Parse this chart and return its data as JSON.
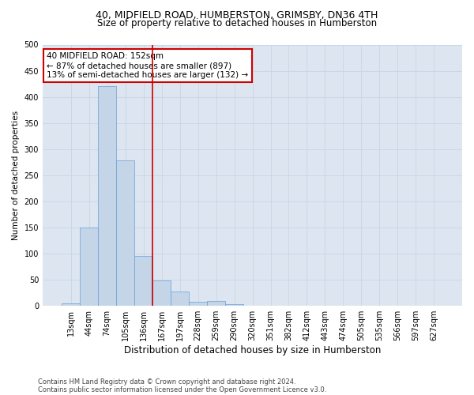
{
  "title_line1": "40, MIDFIELD ROAD, HUMBERSTON, GRIMSBY, DN36 4TH",
  "title_line2": "Size of property relative to detached houses in Humberston",
  "xlabel": "Distribution of detached houses by size in Humberston",
  "ylabel": "Number of detached properties",
  "footnote1": "Contains HM Land Registry data © Crown copyright and database right 2024.",
  "footnote2": "Contains public sector information licensed under the Open Government Licence v3.0.",
  "bar_labels": [
    "13sqm",
    "44sqm",
    "74sqm",
    "105sqm",
    "136sqm",
    "167sqm",
    "197sqm",
    "228sqm",
    "259sqm",
    "290sqm",
    "320sqm",
    "351sqm",
    "382sqm",
    "412sqm",
    "443sqm",
    "474sqm",
    "505sqm",
    "535sqm",
    "566sqm",
    "597sqm",
    "627sqm"
  ],
  "bar_values": [
    5,
    150,
    420,
    278,
    95,
    48,
    28,
    8,
    10,
    3,
    1,
    0,
    0,
    0,
    0,
    0,
    0,
    0,
    0,
    0,
    0
  ],
  "bar_color": "#c5d5e8",
  "bar_edge_color": "#6a9fd8",
  "vline_color": "#cc0000",
  "annotation_title": "40 MIDFIELD ROAD: 152sqm",
  "annotation_line1": "← 87% of detached houses are smaller (897)",
  "annotation_line2": "13% of semi-detached houses are larger (132) →",
  "annotation_box_color": "#cc0000",
  "ylim": [
    0,
    500
  ],
  "yticks": [
    0,
    50,
    100,
    150,
    200,
    250,
    300,
    350,
    400,
    450,
    500
  ],
  "grid_color": "#c8d4e8",
  "background_color": "#dde6f0",
  "title_fontsize": 9,
  "subtitle_fontsize": 8.5,
  "ylabel_fontsize": 7.5,
  "xlabel_fontsize": 8.5,
  "tick_fontsize": 7,
  "footnote_fontsize": 6
}
